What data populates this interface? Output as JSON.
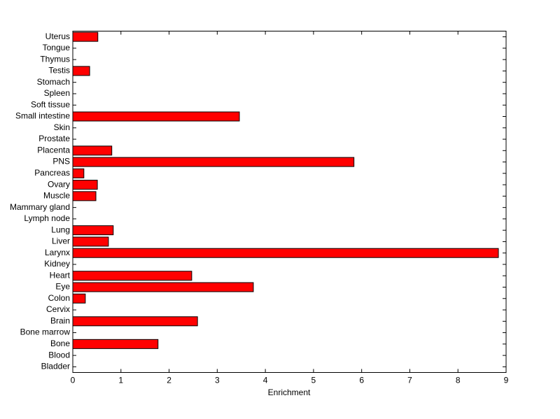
{
  "chart_data": {
    "type": "barh",
    "xlabel": "Enrichment",
    "categories": [
      "Bladder",
      "Blood",
      "Bone",
      "Bone marrow",
      "Brain",
      "Cervix",
      "Colon",
      "Eye",
      "Heart",
      "Kidney",
      "Larynx",
      "Liver",
      "Lung",
      "Lymph node",
      "Mammary gland",
      "Muscle",
      "Ovary",
      "Pancreas",
      "PNS",
      "Placenta",
      "Prostate",
      "Skin",
      "Small intestine",
      "Soft tissue",
      "Spleen",
      "Stomach",
      "Testis",
      "Thymus",
      "Tongue",
      "Uterus"
    ],
    "values": [
      0,
      0,
      1.77,
      0,
      2.59,
      0,
      0.26,
      3.75,
      2.47,
      0,
      8.84,
      0.74,
      0.84,
      0,
      0,
      0.48,
      0.51,
      0.23,
      5.84,
      0.81,
      0,
      0,
      3.46,
      0,
      0,
      0,
      0.35,
      0,
      0,
      0.52
    ],
    "color": "#ff0000",
    "xlim": [
      0,
      9
    ],
    "xticks": [
      0,
      1,
      2,
      3,
      4,
      5,
      6,
      7,
      8,
      9
    ],
    "grid": false
  }
}
